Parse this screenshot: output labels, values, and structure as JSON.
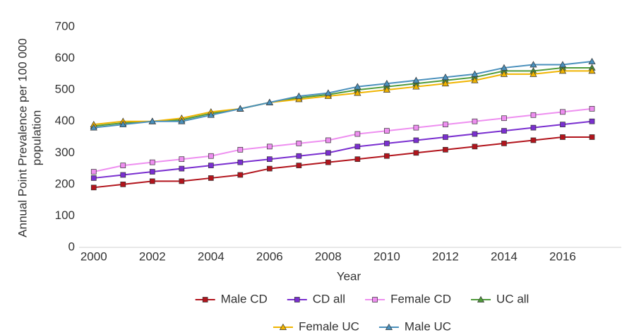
{
  "chart_data": {
    "type": "line",
    "xlabel": "Year",
    "ylabel": [
      "Annual Point Prevalence  per 100 000",
      "population"
    ],
    "x": [
      2000,
      2001,
      2002,
      2003,
      2004,
      2005,
      2006,
      2007,
      2008,
      2009,
      2010,
      2011,
      2012,
      2013,
      2014,
      2015,
      2016,
      2017
    ],
    "xlim": [
      1999.5,
      2018
    ],
    "xticks": [
      2000,
      2002,
      2004,
      2006,
      2008,
      2010,
      2012,
      2014,
      2016
    ],
    "ylim": [
      0,
      700
    ],
    "yticks": [
      0,
      100,
      200,
      300,
      400,
      500,
      600,
      700
    ],
    "grid": false,
    "legend": "bottom",
    "series": [
      {
        "name": "Male CD",
        "color": "#b2141c",
        "marker": "square",
        "values": [
          190,
          200,
          210,
          210,
          220,
          230,
          250,
          260,
          270,
          280,
          290,
          300,
          310,
          320,
          330,
          340,
          350,
          350
        ]
      },
      {
        "name": "CD all",
        "color": "#7a2fd0",
        "marker": "square",
        "values": [
          220,
          230,
          240,
          250,
          260,
          270,
          280,
          290,
          300,
          320,
          330,
          340,
          350,
          360,
          370,
          380,
          390,
          400
        ]
      },
      {
        "name": "Female CD",
        "color": "#ee8ff0",
        "marker": "square",
        "values": [
          240,
          260,
          270,
          280,
          290,
          310,
          320,
          330,
          340,
          360,
          370,
          380,
          390,
          400,
          410,
          420,
          430,
          440
        ]
      },
      {
        "name": "UC all",
        "color": "#4f9a3a",
        "marker": "triangle",
        "values": [
          385,
          395,
          400,
          405,
          425,
          440,
          460,
          475,
          485,
          500,
          510,
          520,
          530,
          540,
          560,
          560,
          570,
          570
        ]
      },
      {
        "name": "Female UC",
        "color": "#f0b400",
        "marker": "triangle",
        "values": [
          390,
          400,
          400,
          410,
          430,
          440,
          460,
          470,
          480,
          490,
          500,
          510,
          520,
          530,
          550,
          550,
          560,
          560
        ]
      },
      {
        "name": "Male UC",
        "color": "#4a90bc",
        "marker": "triangle",
        "values": [
          380,
          390,
          400,
          400,
          420,
          440,
          460,
          480,
          490,
          510,
          520,
          530,
          540,
          550,
          570,
          580,
          580,
          590
        ]
      }
    ]
  }
}
